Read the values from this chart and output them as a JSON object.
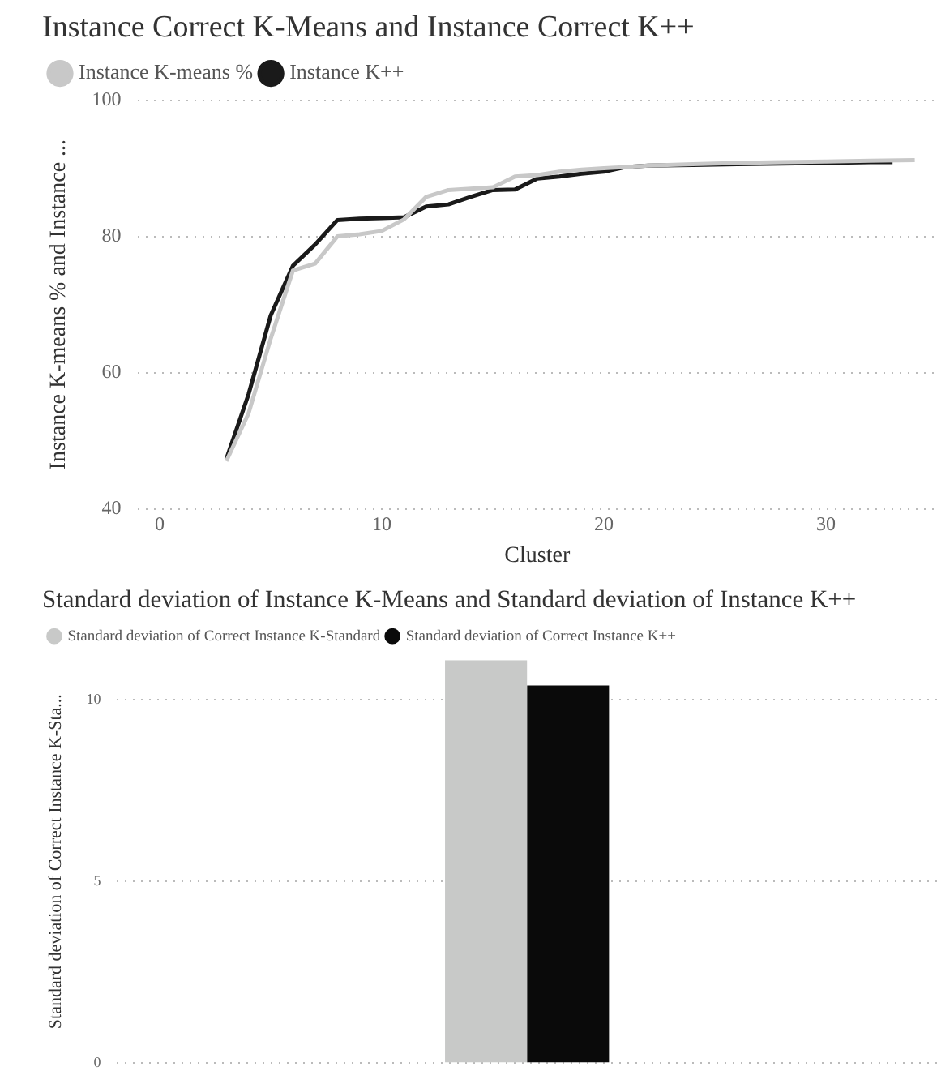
{
  "chart_data": [
    {
      "type": "line",
      "title": "Instance Correct K-Means and Instance Correct K++",
      "xlabel": "Cluster",
      "ylabel": "Instance K-means % and Instance ...",
      "legend": "top left",
      "grid": "y",
      "marker": "none",
      "line_style": "solid",
      "xlim": [
        -1,
        35
      ],
      "xticks": [
        0,
        10,
        20,
        30
      ],
      "ylim": [
        40,
        100
      ],
      "yticks": [
        40,
        60,
        80,
        100
      ],
      "series": [
        {
          "name": "Instance K-means %",
          "color": "#c8c8c8",
          "x": [
            3,
            4,
            5,
            6,
            7,
            8,
            9,
            10,
            11,
            12,
            13,
            14,
            15,
            16,
            17,
            18,
            19,
            20,
            21,
            22,
            24,
            26,
            28,
            30,
            32,
            34
          ],
          "values": [
            47,
            54,
            65,
            75,
            76,
            80,
            80.3,
            80.8,
            82.5,
            85.8,
            86.8,
            87,
            87.2,
            88.8,
            89,
            89.5,
            89.8,
            90,
            90.2,
            90.4,
            90.6,
            90.8,
            90.9,
            91,
            91.1,
            91.2
          ]
        },
        {
          "name": "Instance K++",
          "color": "#1a1a1a",
          "x": [
            3,
            4,
            5,
            6,
            7,
            8,
            9,
            10,
            11,
            12,
            13,
            14,
            15,
            16,
            17,
            18,
            19,
            20,
            21,
            22,
            24,
            26,
            28,
            30,
            32,
            33
          ],
          "values": [
            47.3,
            56.8,
            68.4,
            75.7,
            78.8,
            82.4,
            82.6,
            82.7,
            82.8,
            84.4,
            84.7,
            85.8,
            86.8,
            86.9,
            88.5,
            88.8,
            89.2,
            89.5,
            90.2,
            90.4,
            90.5,
            90.6,
            90.7,
            90.8,
            90.9,
            90.9
          ]
        }
      ]
    },
    {
      "type": "bar",
      "title": "Standard deviation of Instance K-Means and Standard deviation of Instance K++",
      "ylabel": "Standard deviation of Correct Instance K-Sta...",
      "legend": "top left",
      "grid": "y",
      "tick_labels": "y",
      "categories": [
        null
      ],
      "ylim": [
        0,
        11.1
      ],
      "yticks": [
        0,
        5,
        10
      ],
      "series": [
        {
          "name": "Standard deviation of Correct Instance K-Standard",
          "color": "#c8c9c8",
          "values": [
            11.1
          ]
        },
        {
          "name": "Standard deviation of Correct Instance K++",
          "color": "#0a0a0a",
          "values": [
            10.4
          ]
        }
      ]
    }
  ]
}
